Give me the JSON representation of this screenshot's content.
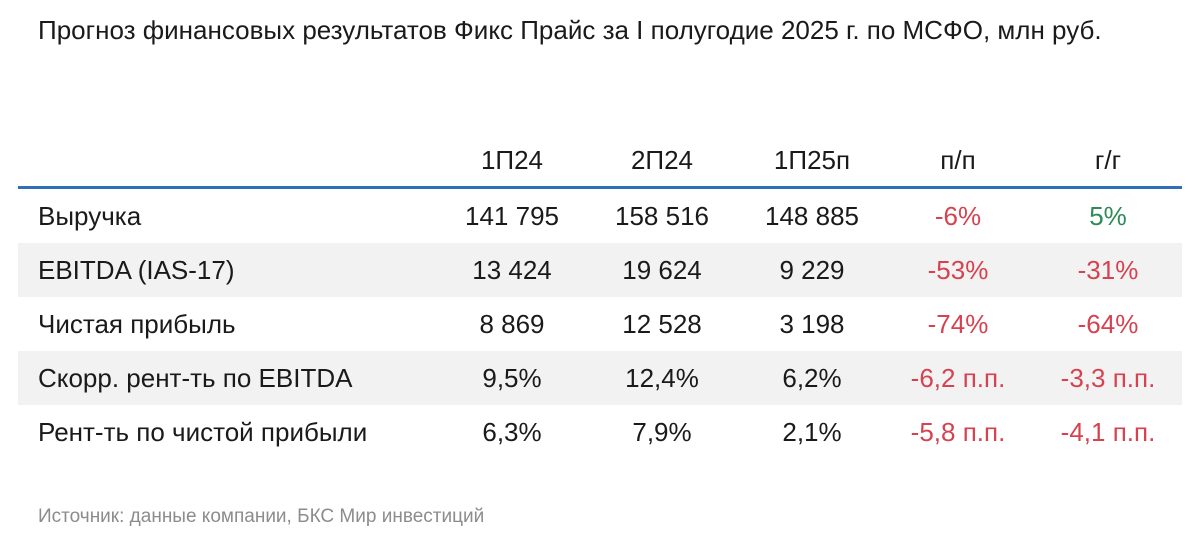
{
  "title": "Прогноз финансовых результатов Фикс Прайс за I полугодие 2025 г. по МСФО, млн руб.",
  "columns": [
    "1П24",
    "2П24",
    "1П25п",
    "п/п",
    "г/г"
  ],
  "rows": [
    {
      "label": "Выручка",
      "values": [
        "141 795",
        "158 516",
        "148 885",
        "-6%",
        "5%"
      ]
    },
    {
      "label": "EBITDA (IAS-17)",
      "values": [
        "13 424",
        "19 624",
        "9 229",
        "-53%",
        "-31%"
      ]
    },
    {
      "label": "Чистая прибыль",
      "values": [
        "8 869",
        "12 528",
        "3 198",
        "-74%",
        "-64%"
      ]
    },
    {
      "label": "Скорр. рент-ть по EBITDA",
      "values": [
        "9,5%",
        "12,4%",
        "6,2%",
        "-6,2 п.п.",
        "-3,3 п.п."
      ]
    },
    {
      "label": "Рент-ть по чистой прибыли",
      "values": [
        "6,3%",
        "7,9%",
        "2,1%",
        "-5,8 п.п.",
        "-4,1 п.п."
      ]
    }
  ],
  "colors": {
    "negative": "#d6424f",
    "positive": "#2e8b57",
    "header_rule": "#2f6fb6",
    "row_shade": "#f2f2f2"
  },
  "source": "Источник: данные компании, БКС Мир инвестиций"
}
